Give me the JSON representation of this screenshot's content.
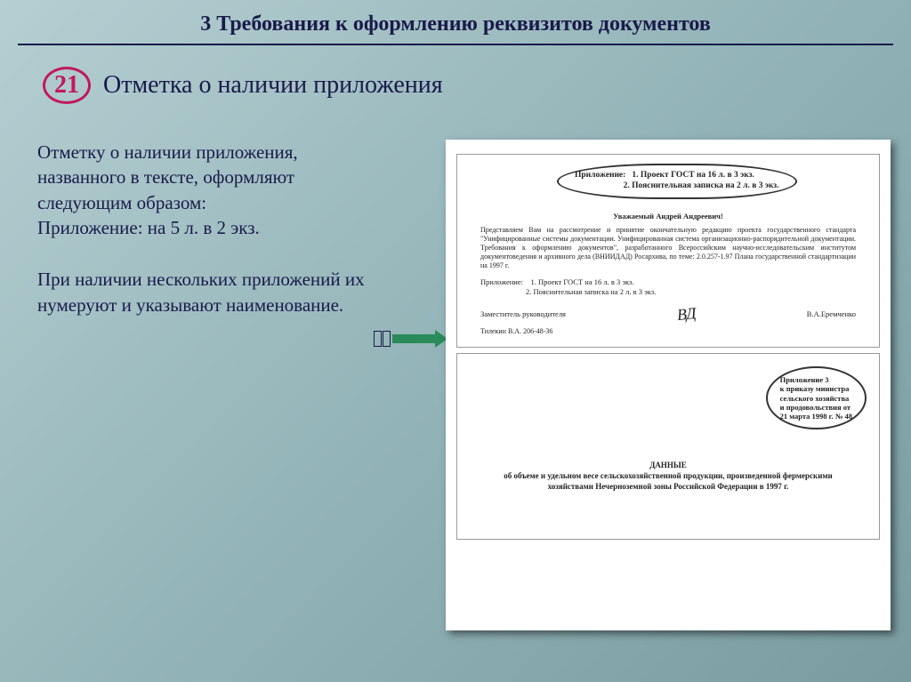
{
  "header": {
    "title": "3 Требования к оформлению реквизитов документов"
  },
  "subtitle": {
    "badge_number": "21",
    "text": "Отметка о наличии приложения"
  },
  "left_column": {
    "para1": "Отметку о наличии приложения, названного в тексте, оформляют следующим образом:\nПриложение: на 5 л.  в 2 экз.",
    "para2": "При наличии нескольких приложений их нумеруют и указывают наименование."
  },
  "document": {
    "callout_top": "Приложение:   1. Проект ГОСТ на 16 л. в 3 экз.\n                       2. Пояснительная записка на 2 л. в 3 экз.",
    "greeting": "Уважаемый Андрей Андреевич!",
    "body": "Представляем Вам на рассмотрение и принятие окончательную редакцию проекта государственного стандарта \"Унифицированные системы документации. Унифицированная система организационно-распорядительной документации. Требования к оформлению документов\", разработанного Всероссийским научно-исследовательским институтом документоведения и архивного дела (ВНИИДАД) Росархива, по теме: 2.0.257-1.97 Плана государственной стандартизации на 1997 г.",
    "attach": "Приложение:    1. Проект ГОСТ на 16 л. в 3 экз.\n                        2. Пояснительная записка на 2 л. в 3 экз.",
    "sig_title": "Заместитель руководителя",
    "sig_name": "В.А.Еремченко",
    "footer": "Тилекин В.А. 206-48-36",
    "callout_right": "Приложение 3\nк приказу министра\nсельского хозяйства\nи продовольствия от\n21 марта 1998 г. № 48",
    "page2_title_label": "ДАННЫЕ",
    "page2_title": "об объеме и удельном весе сельскохозяйственной продукции, произведенной фермерскими хозяйствами Нечерноземной зоны Российской Федерации в 1997 г."
  },
  "colors": {
    "heading": "#1a1a4a",
    "badge": "#c2185b",
    "arrow": "#2a8a5a"
  }
}
